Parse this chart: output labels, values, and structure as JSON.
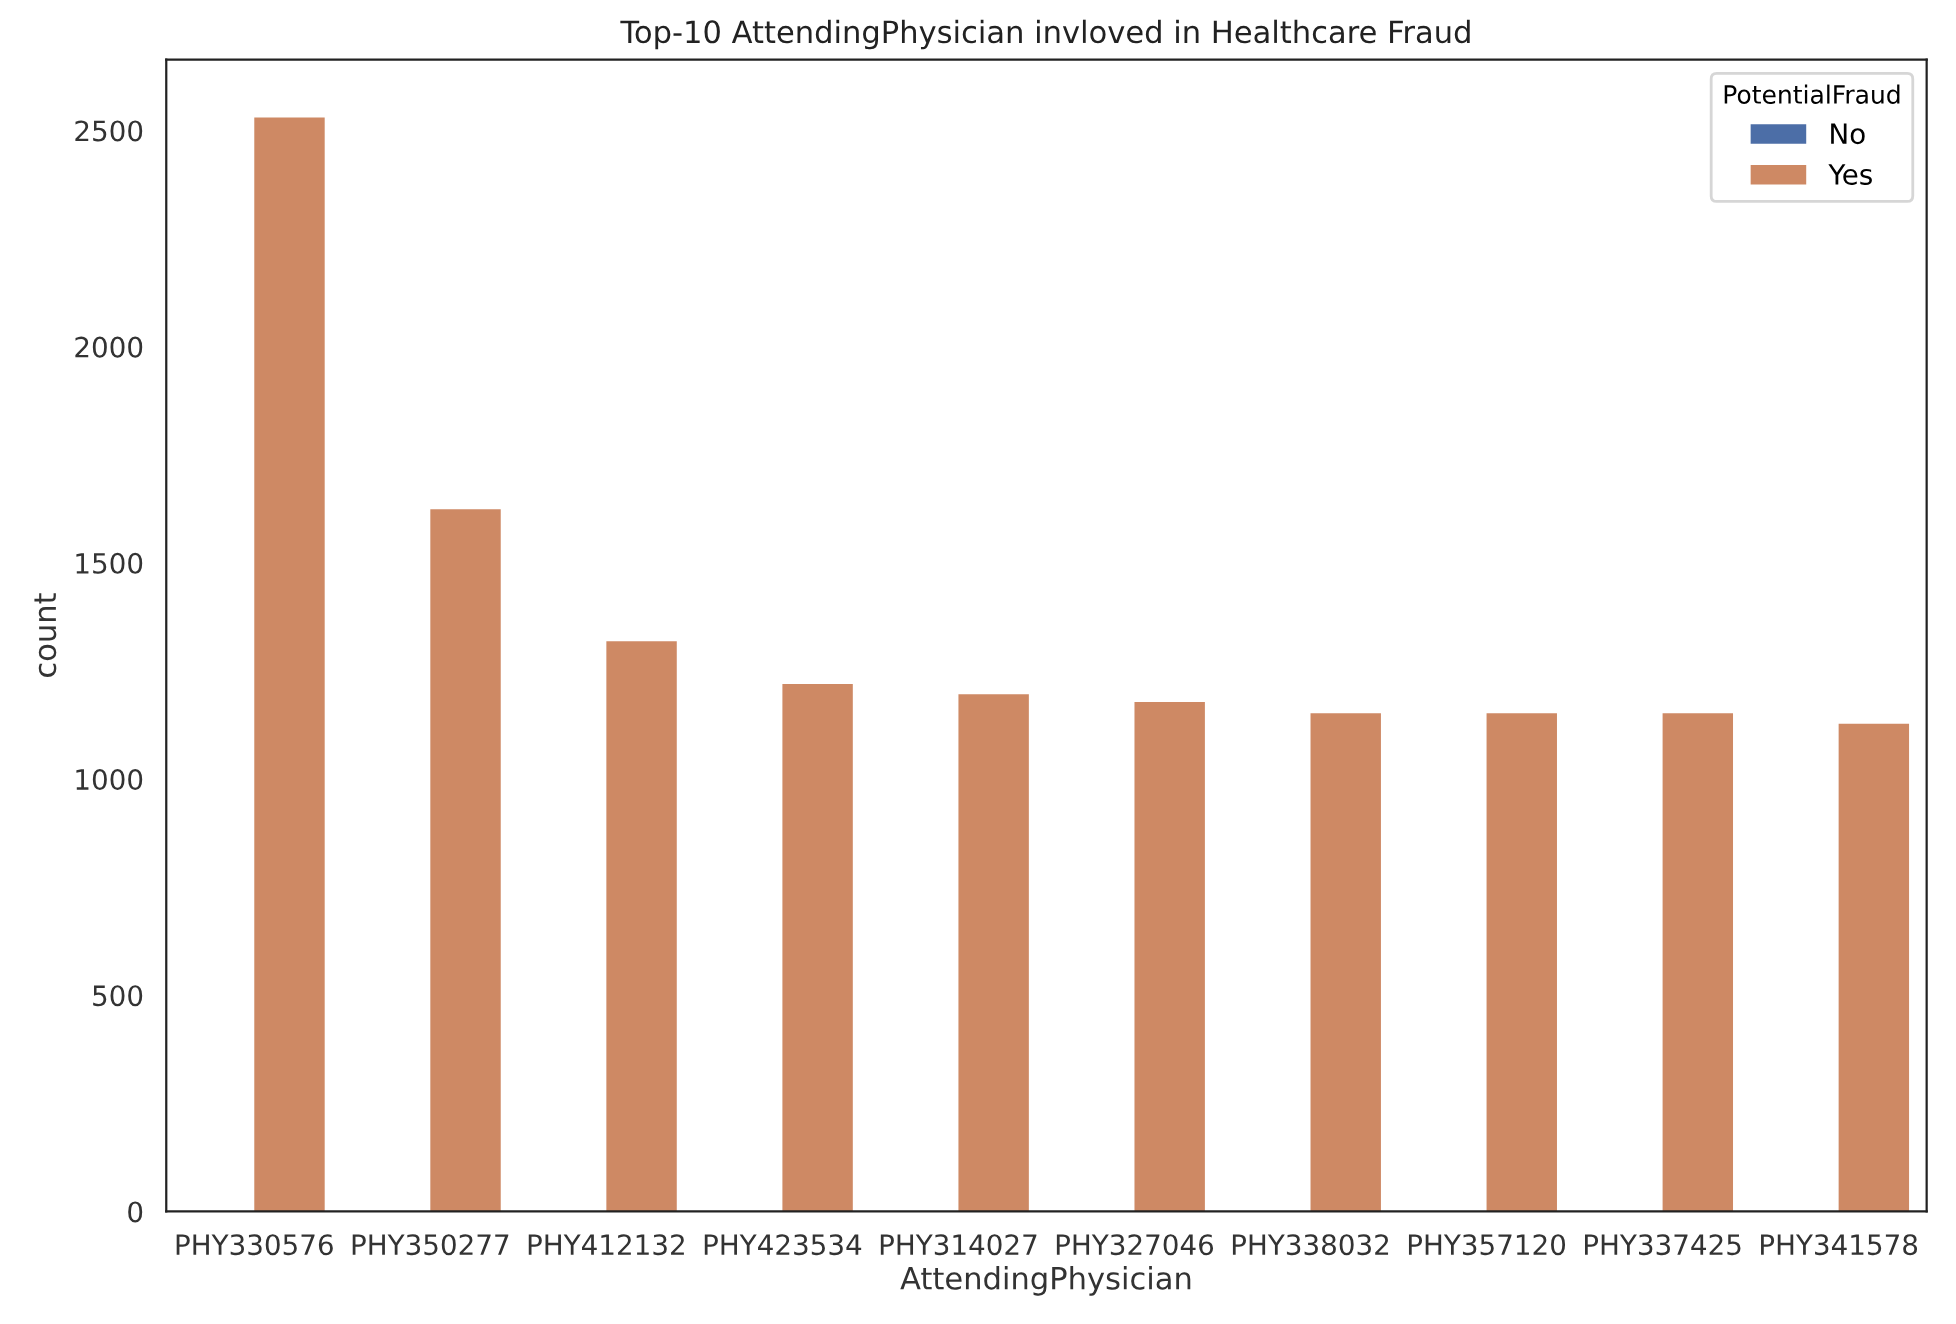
{
  "chart_data": {
    "type": "bar",
    "title": "Top-10 AttendingPhysician invloved in Healthcare Fraud",
    "xlabel": "AttendingPhysician",
    "ylabel": "count",
    "legend_title": "PotentialFraud",
    "categories": [
      "PHY330576",
      "PHY350277",
      "PHY412132",
      "PHY423534",
      "PHY314027",
      "PHY327046",
      "PHY338032",
      "PHY357120",
      "PHY337425",
      "PHY341578"
    ],
    "series": [
      {
        "name": "No",
        "color": "#4c6ea7",
        "values": [
          0,
          0,
          0,
          0,
          0,
          0,
          0,
          0,
          0,
          0
        ]
      },
      {
        "name": "Yes",
        "color": "#ce8964",
        "values": [
          2530,
          1624,
          1319,
          1220,
          1196,
          1178,
          1152,
          1152,
          1152,
          1128
        ]
      }
    ],
    "ylim": [
      0,
      2664
    ],
    "yticks": [
      0,
      500,
      1000,
      1500,
      2000,
      2500
    ],
    "grid": false,
    "legend": "top right"
  }
}
